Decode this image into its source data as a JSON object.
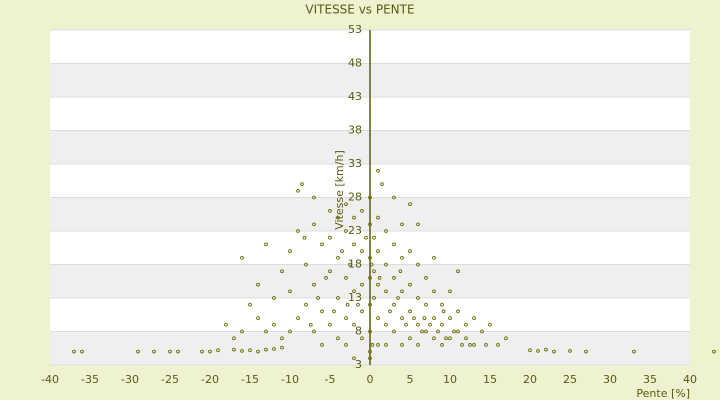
{
  "chart_data": {
    "type": "scatter",
    "title": "VITESSE vs PENTE",
    "x_label": "Pente [%]",
    "y_label": "Vitesse [km/h]",
    "color": "#6b6b00",
    "xlim": [
      -40,
      40
    ],
    "xticks": [
      -40,
      -35,
      -30,
      -25,
      -20,
      -15,
      -10,
      -5,
      0,
      5,
      10,
      15,
      20,
      25,
      30,
      35,
      40
    ],
    "ylim": [
      3,
      53
    ],
    "yticks": [
      3,
      8,
      13,
      18,
      23,
      28,
      33,
      38,
      43,
      48,
      53
    ],
    "grid": true,
    "x": [
      -37,
      -36,
      -29,
      -27,
      -25,
      -24,
      -21,
      -20,
      -19,
      -17,
      -16,
      -15,
      -14,
      -13,
      -12,
      -11,
      20,
      21,
      22,
      23,
      25,
      27,
      33,
      43,
      -9,
      -8.5,
      -7,
      -5,
      -3,
      -2,
      0,
      1,
      1.5,
      3,
      5,
      6,
      -16,
      -13,
      -14,
      -15,
      -12,
      -11,
      -10,
      -10,
      -9,
      -9,
      -8,
      -8,
      -7,
      -7,
      -7,
      -6,
      -6,
      -6,
      -5,
      -5,
      -5,
      -4,
      -4,
      -4,
      -4,
      -3,
      -3,
      -3,
      -3,
      -2,
      -2,
      -2,
      -1,
      -1,
      -1,
      -1,
      -1,
      0,
      0,
      0,
      0,
      0,
      0.5,
      0.5,
      0.5,
      1,
      1,
      1,
      1,
      1,
      2,
      2,
      2,
      2,
      2,
      3,
      3,
      3,
      3,
      4,
      4,
      4,
      4,
      4,
      5,
      5,
      5,
      5,
      6,
      6,
      6,
      6,
      7,
      7,
      7,
      8,
      8,
      8,
      8,
      9,
      9,
      9,
      10,
      10,
      10,
      11,
      11,
      11,
      12,
      12,
      13,
      13,
      14,
      15,
      16,
      17,
      -18,
      -17,
      -16,
      -14,
      -13,
      -12,
      -11,
      -10,
      -2,
      0,
      0,
      0.3,
      -6.5,
      -5.5,
      -4.5,
      -3.5,
      -2.5,
      -1.5,
      -0.5,
      0.2,
      1.2,
      2.5,
      3.5,
      4.5,
      5.5,
      6.5,
      7.5,
      8.5,
      9.5,
      10.5,
      11.5,
      12.5,
      14.5,
      -8.2,
      -7.4,
      -2.8,
      3.8,
      6.8,
      9.2
    ],
    "y": [
      5,
      5,
      5,
      5,
      5,
      5,
      5,
      5,
      5.2,
      5.3,
      5.1,
      5.2,
      5,
      5.3,
      5.4,
      5.6,
      5.2,
      5.1,
      5.3,
      5,
      5.1,
      5,
      5,
      5,
      29,
      30,
      28,
      26,
      27,
      25,
      28,
      32,
      30,
      28,
      27,
      24,
      19,
      21,
      15,
      12,
      13,
      17,
      20,
      14,
      10,
      23,
      18,
      12,
      24,
      15,
      8,
      21,
      11,
      6,
      22,
      17,
      9,
      25,
      19,
      13,
      7,
      23,
      16,
      10,
      6,
      21,
      14,
      9,
      26,
      20,
      15,
      11,
      7,
      24,
      19,
      16,
      12,
      8,
      22,
      17,
      13,
      25,
      20,
      15,
      10,
      6,
      23,
      18,
      14,
      9,
      6,
      21,
      16,
      12,
      8,
      24,
      19,
      14,
      10,
      6,
      20,
      15,
      11,
      7,
      18,
      13,
      9,
      6,
      16,
      12,
      8,
      19,
      14,
      10,
      7,
      12,
      9,
      6,
      14,
      10,
      7,
      17,
      11,
      8,
      9,
      7,
      10,
      6,
      8,
      9,
      6,
      7,
      9,
      7,
      8,
      10,
      8,
      9,
      7,
      8,
      4,
      4,
      5,
      6,
      13,
      16,
      11,
      20,
      18,
      12,
      22,
      18,
      16,
      11,
      13,
      9,
      10,
      8,
      9,
      8,
      7,
      8,
      6,
      6,
      6,
      22,
      9,
      12,
      17,
      10,
      11
    ]
  }
}
